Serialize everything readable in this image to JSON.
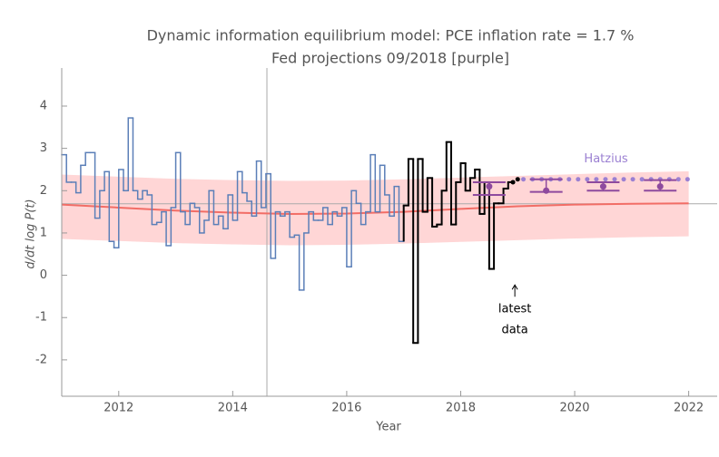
{
  "chart_data": {
    "type": "line",
    "title": "Dynamic information equilibrium model: PCE inflation rate = 1.7 %",
    "subtitle": "Fed projections 09/2018 [purple]",
    "xlabel": "Year",
    "ylabel": "d/dt log P(t)",
    "xlim": [
      2011,
      2022.5
    ],
    "ylim": [
      -2.86,
      4.9
    ],
    "xticks": [
      2012,
      2014,
      2016,
      2018,
      2020,
      2022
    ],
    "yticks": [
      -2,
      -1,
      0,
      1,
      2,
      3,
      4
    ],
    "band": {
      "color": "#ffd6d6",
      "x": [
        2011,
        2012,
        2013,
        2014,
        2015,
        2016,
        2017,
        2018,
        2019,
        2020,
        2021,
        2022
      ],
      "upper": [
        2.38,
        2.33,
        2.28,
        2.25,
        2.23,
        2.24,
        2.27,
        2.31,
        2.35,
        2.39,
        2.43,
        2.46
      ],
      "lower": [
        0.86,
        0.81,
        0.76,
        0.73,
        0.71,
        0.72,
        0.75,
        0.79,
        0.83,
        0.87,
        0.9,
        0.92
      ]
    },
    "model": {
      "color": "#f26d66",
      "x": [
        2011,
        2012,
        2013,
        2014,
        2015,
        2016,
        2017,
        2018,
        2019,
        2020,
        2021,
        2022
      ],
      "values": [
        1.67,
        1.6,
        1.53,
        1.48,
        1.45,
        1.46,
        1.5,
        1.57,
        1.63,
        1.67,
        1.69,
        1.7
      ]
    },
    "series": [
      {
        "color": "#5b7fb8",
        "x": [
          2011,
          2011.083,
          2011.167,
          2011.25,
          2011.333,
          2011.417,
          2011.5,
          2011.583,
          2011.667,
          2011.75,
          2011.833,
          2011.917,
          2012,
          2012.083,
          2012.167,
          2012.25,
          2012.333,
          2012.417,
          2012.5,
          2012.583,
          2012.667,
          2012.75,
          2012.833,
          2012.917,
          2013,
          2013.083,
          2013.167,
          2013.25,
          2013.333,
          2013.417,
          2013.5,
          2013.583,
          2013.667,
          2013.75,
          2013.833,
          2013.917,
          2014,
          2014.083,
          2014.167,
          2014.25,
          2014.333,
          2014.417,
          2014.5,
          2014.583,
          2014.667,
          2014.75,
          2014.833,
          2014.917,
          2015,
          2015.083,
          2015.167,
          2015.25,
          2015.333,
          2015.417,
          2015.5,
          2015.583,
          2015.667,
          2015.75,
          2015.833,
          2015.917,
          2016,
          2016.083,
          2016.167,
          2016.25,
          2016.333,
          2016.417,
          2016.5,
          2016.583,
          2016.667,
          2016.75,
          2016.833,
          2016.917
        ],
        "values": [
          2.85,
          2.2,
          2.2,
          1.95,
          2.6,
          2.9,
          2.9,
          1.35,
          2.0,
          2.45,
          0.8,
          0.65,
          2.5,
          2.0,
          3.72,
          2.0,
          1.8,
          2.0,
          1.9,
          1.2,
          1.25,
          1.5,
          0.7,
          1.6,
          2.9,
          1.5,
          1.2,
          1.7,
          1.6,
          1.0,
          1.3,
          2.0,
          1.2,
          1.4,
          1.1,
          1.9,
          1.3,
          2.45,
          1.95,
          1.75,
          1.4,
          2.7,
          1.6,
          2.4,
          0.4,
          1.5,
          1.4,
          1.5,
          0.9,
          0.95,
          -0.35,
          1.0,
          1.5,
          1.3,
          1.3,
          1.6,
          1.2,
          1.5,
          1.4,
          1.6,
          0.2,
          2.0,
          1.7,
          1.2,
          1.5,
          2.85,
          1.5,
          2.6,
          1.9,
          1.4,
          2.1,
          0.8
        ]
      },
      {
        "color": "#000000",
        "x": [
          2017,
          2017.083,
          2017.167,
          2017.25,
          2017.333,
          2017.417,
          2017.5,
          2017.583,
          2017.667,
          2017.75,
          2017.833,
          2017.917,
          2018,
          2018.083,
          2018.167,
          2018.25,
          2018.333,
          2018.417,
          2018.5,
          2018.583,
          2018.667,
          2018.75,
          2018.833
        ],
        "values": [
          1.65,
          2.75,
          -1.6,
          2.75,
          1.5,
          2.3,
          1.15,
          1.2,
          2.0,
          3.15,
          1.2,
          2.2,
          2.65,
          2.0,
          2.3,
          2.5,
          1.45,
          2.2,
          0.15,
          1.7,
          1.7,
          2.05,
          2.2
        ]
      }
    ],
    "recent_points": {
      "color": "#000000",
      "x": [
        2018.917,
        2019.0
      ],
      "values": [
        2.2,
        2.27
      ]
    },
    "hatzius": {
      "name": "Hatzius",
      "color": "#9b80d2",
      "x": [
        2019.1,
        2019.26,
        2019.42,
        2019.58,
        2019.74,
        2019.9,
        2020.06,
        2020.22,
        2020.38,
        2020.54,
        2020.7,
        2020.86,
        2021.02,
        2021.18,
        2021.34,
        2021.5,
        2021.66,
        2021.82,
        2021.98
      ],
      "values": [
        2.27,
        2.27,
        2.27,
        2.27,
        2.27,
        2.27,
        2.27,
        2.27,
        2.27,
        2.27,
        2.27,
        2.27,
        2.27,
        2.27,
        2.27,
        2.27,
        2.27,
        2.27,
        2.27
      ]
    },
    "fed_projections": {
      "color": "#8e4a9e",
      "x": [
        2018.5,
        2019.5,
        2020.5,
        2021.5
      ],
      "values": [
        2.1,
        2.0,
        2.1,
        2.1
      ],
      "low": [
        1.9,
        1.97,
        2.0,
        2.0
      ],
      "high": [
        2.2,
        2.27,
        2.2,
        2.25
      ]
    },
    "vline": 2014.6,
    "hline": 1.69,
    "annotation": {
      "x": 2018.95,
      "y": -0.55,
      "lines": [
        "latest",
        "data"
      ]
    }
  }
}
